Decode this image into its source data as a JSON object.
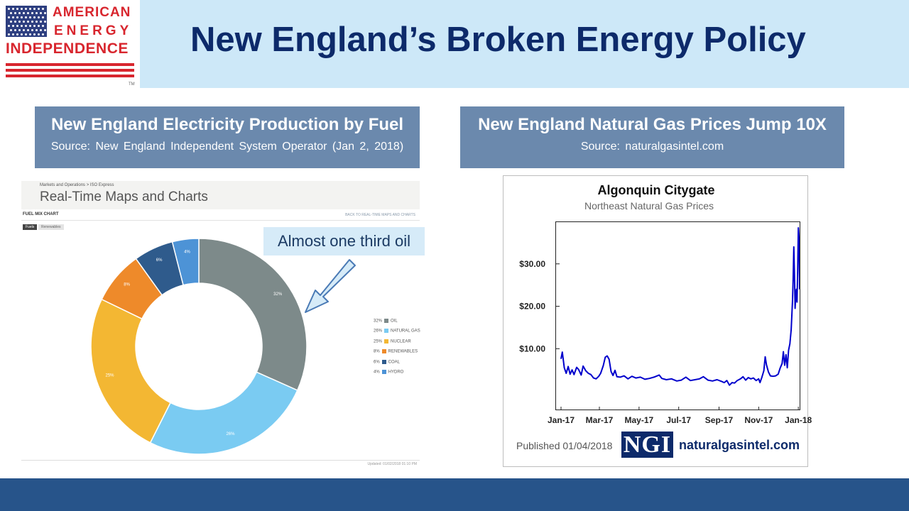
{
  "logo": {
    "line1": "AMERICAN",
    "line2": "ENERGY",
    "line3": "INDEPENDENCE",
    "tm": "TM"
  },
  "title": "New England’s Broken Energy Policy",
  "left_panel": {
    "title": "New England Electricity Production by Fuel",
    "source": "Source: New England Independent System Operator (Jan 2, 2018)"
  },
  "right_panel": {
    "title": "New England Natural Gas Prices Jump 10X",
    "source": "Source: naturalgasintel.com"
  },
  "iso_screenshot": {
    "breadcrumb": "Markets and Operations > ISO Express",
    "heading": "Real-Time Maps and Charts",
    "section": "FUEL MIX CHART",
    "back_link": "BACK TO REAL-TIME MAPS AND CHARTS",
    "tabs": [
      "Fuels",
      "Renewables"
    ],
    "updated": "Updated: 01/02/2018 01:10 PM"
  },
  "callout": "Almost one third oil",
  "colors": {
    "header_bg": "#cde8f8",
    "title": "#0d2a6a",
    "panel_box": "#6b89ad",
    "oil": "#7d8a8a",
    "natural_gas": "#7acbf2",
    "nuclear": "#f3b733",
    "renewables": "#ee8a2a",
    "coal": "#2f5b8c",
    "hydro": "#4d93d6",
    "gas_line": "#0000cc",
    "footer_bar": "#27548a"
  },
  "ngi_chart": {
    "published": "Published 01/04/2018",
    "logo_text": "NGI",
    "site": "naturalgasintel.com"
  },
  "chart_data": [
    {
      "type": "pie",
      "variant": "donut",
      "title": "",
      "slices": [
        {
          "label": "OIL",
          "value": 32,
          "pct_label": "32%",
          "color": "#7d8a8a"
        },
        {
          "label": "NATURAL GAS",
          "value": 26,
          "pct_label": "26%",
          "color": "#7acbf2"
        },
        {
          "label": "NUCLEAR",
          "value": 25,
          "pct_label": "25%",
          "color": "#f3b733"
        },
        {
          "label": "RENEWABLES",
          "value": 8,
          "pct_label": "8%",
          "color": "#ee8a2a"
        },
        {
          "label": "COAL",
          "value": 6,
          "pct_label": "6%",
          "color": "#2f5b8c"
        },
        {
          "label": "HYDRO",
          "value": 4,
          "pct_label": "4%",
          "color": "#4d93d6"
        }
      ],
      "legend": "right"
    },
    {
      "type": "line",
      "title": "Algonquin Citygate",
      "subtitle": "Northeast Natural Gas Prices",
      "xlabel": "",
      "ylabel": "",
      "x_ticks": [
        "Jan-17",
        "Mar-17",
        "May-17",
        "Jul-17",
        "Sep-17",
        "Nov-17",
        "Jan-18"
      ],
      "y_ticks": [
        {
          "value": 10,
          "label": "$10.00"
        },
        {
          "value": 20,
          "label": "$20.00"
        },
        {
          "value": 30,
          "label": "$30.00"
        }
      ],
      "ylim": [
        -4.5,
        40
      ],
      "series": [
        {
          "color": "#0000cc",
          "points": [
            [
              "2017-01-01",
              7.6
            ],
            [
              "2017-01-03",
              9.2
            ],
            [
              "2017-01-06",
              5.5
            ],
            [
              "2017-01-09",
              4.2
            ],
            [
              "2017-01-12",
              5.8
            ],
            [
              "2017-01-15",
              4.0
            ],
            [
              "2017-01-18",
              5.0
            ],
            [
              "2017-01-21",
              3.9
            ],
            [
              "2017-01-25",
              5.6
            ],
            [
              "2017-01-28",
              5.1
            ],
            [
              "2017-02-01",
              3.8
            ],
            [
              "2017-02-04",
              5.9
            ],
            [
              "2017-02-08",
              4.8
            ],
            [
              "2017-02-12",
              4.2
            ],
            [
              "2017-02-16",
              3.9
            ],
            [
              "2017-02-20",
              3.1
            ],
            [
              "2017-02-24",
              2.9
            ],
            [
              "2017-02-28",
              3.5
            ],
            [
              "2017-03-03",
              4.2
            ],
            [
              "2017-03-07",
              6.0
            ],
            [
              "2017-03-10",
              8.0
            ],
            [
              "2017-03-13",
              8.3
            ],
            [
              "2017-03-16",
              7.5
            ],
            [
              "2017-03-19",
              4.6
            ],
            [
              "2017-03-22",
              3.7
            ],
            [
              "2017-03-25",
              4.9
            ],
            [
              "2017-03-28",
              3.4
            ],
            [
              "2017-04-02",
              3.3
            ],
            [
              "2017-04-08",
              3.6
            ],
            [
              "2017-04-14",
              2.9
            ],
            [
              "2017-04-20",
              3.5
            ],
            [
              "2017-04-26",
              3.1
            ],
            [
              "2017-05-03",
              3.3
            ],
            [
              "2017-05-10",
              2.8
            ],
            [
              "2017-05-17",
              3.0
            ],
            [
              "2017-05-24",
              3.3
            ],
            [
              "2017-06-01",
              3.8
            ],
            [
              "2017-06-05",
              3.0
            ],
            [
              "2017-06-12",
              2.7
            ],
            [
              "2017-06-20",
              2.9
            ],
            [
              "2017-06-28",
              2.4
            ],
            [
              "2017-07-05",
              2.6
            ],
            [
              "2017-07-12",
              3.3
            ],
            [
              "2017-07-19",
              2.5
            ],
            [
              "2017-07-26",
              2.7
            ],
            [
              "2017-08-02",
              2.9
            ],
            [
              "2017-08-08",
              3.4
            ],
            [
              "2017-08-15",
              2.6
            ],
            [
              "2017-08-22",
              2.4
            ],
            [
              "2017-08-29",
              2.7
            ],
            [
              "2017-09-05",
              2.3
            ],
            [
              "2017-09-09",
              2.0
            ],
            [
              "2017-09-13",
              2.5
            ],
            [
              "2017-09-17",
              1.4
            ],
            [
              "2017-09-21",
              2.0
            ],
            [
              "2017-09-25",
              1.9
            ],
            [
              "2017-09-29",
              2.5
            ],
            [
              "2017-10-04",
              2.9
            ],
            [
              "2017-10-08",
              3.4
            ],
            [
              "2017-10-12",
              2.6
            ],
            [
              "2017-10-16",
              3.2
            ],
            [
              "2017-10-20",
              2.9
            ],
            [
              "2017-10-24",
              3.1
            ],
            [
              "2017-10-28",
              2.5
            ],
            [
              "2017-11-01",
              2.9
            ],
            [
              "2017-11-03",
              2.0
            ],
            [
              "2017-11-06",
              3.3
            ],
            [
              "2017-11-09",
              4.8
            ],
            [
              "2017-11-11",
              8.1
            ],
            [
              "2017-11-13",
              6.2
            ],
            [
              "2017-11-16",
              4.5
            ],
            [
              "2017-11-19",
              3.6
            ],
            [
              "2017-11-23",
              3.5
            ],
            [
              "2017-11-27",
              3.6
            ],
            [
              "2017-12-01",
              4.0
            ],
            [
              "2017-12-04",
              5.4
            ],
            [
              "2017-12-07",
              6.5
            ],
            [
              "2017-12-09",
              9.3
            ],
            [
              "2017-12-11",
              6.1
            ],
            [
              "2017-12-13",
              8.6
            ],
            [
              "2017-12-15",
              5.5
            ],
            [
              "2017-12-17",
              9.6
            ],
            [
              "2017-12-19",
              11.2
            ],
            [
              "2017-12-21",
              14.5
            ],
            [
              "2017-12-23",
              21.0
            ],
            [
              "2017-12-24",
              26.0
            ],
            [
              "2017-12-25",
              34.0
            ],
            [
              "2017-12-26",
              28.0
            ],
            [
              "2017-12-27",
              19.5
            ],
            [
              "2017-12-28",
              22.5
            ],
            [
              "2017-12-29",
              24.0
            ],
            [
              "2017-12-30",
              21.0
            ],
            [
              "2017-12-31",
              29.0
            ],
            [
              "2018-01-01",
              38.5
            ],
            [
              "2018-01-02",
              36.0
            ],
            [
              "2018-01-03",
              24.0
            ]
          ]
        }
      ]
    }
  ]
}
